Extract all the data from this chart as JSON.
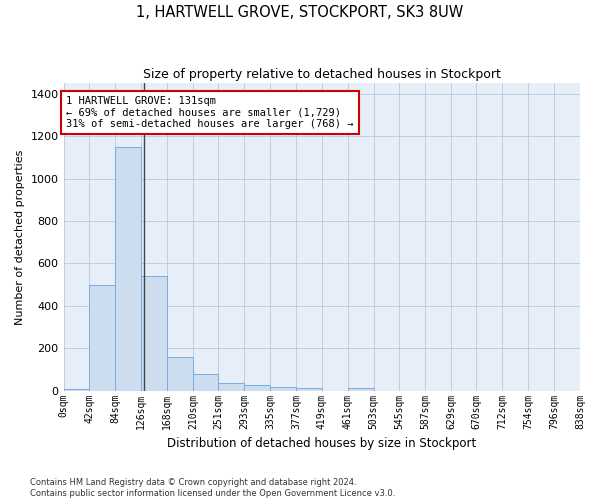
{
  "title_line1": "1, HARTWELL GROVE, STOCKPORT, SK3 8UW",
  "title_line2": "Size of property relative to detached houses in Stockport",
  "xlabel": "Distribution of detached houses by size in Stockport",
  "ylabel": "Number of detached properties",
  "footer_line1": "Contains HM Land Registry data © Crown copyright and database right 2024.",
  "footer_line2": "Contains public sector information licensed under the Open Government Licence v3.0.",
  "bin_edges": [
    0,
    42,
    84,
    126,
    168,
    210,
    251,
    293,
    335,
    377,
    419,
    461,
    503,
    545,
    587,
    629,
    670,
    712,
    754,
    796,
    838
  ],
  "bin_labels": [
    "0sqm",
    "42sqm",
    "84sqm",
    "126sqm",
    "168sqm",
    "210sqm",
    "251sqm",
    "293sqm",
    "335sqm",
    "377sqm",
    "419sqm",
    "461sqm",
    "503sqm",
    "545sqm",
    "587sqm",
    "629sqm",
    "670sqm",
    "712sqm",
    "754sqm",
    "796sqm",
    "838sqm"
  ],
  "bar_heights": [
    10,
    500,
    1150,
    540,
    160,
    80,
    35,
    28,
    15,
    14,
    0,
    14,
    0,
    0,
    0,
    0,
    0,
    0,
    0,
    0
  ],
  "bar_color": "#ccddf0",
  "bar_edge_color": "#7aabe0",
  "grid_color": "#b8c8dc",
  "bg_color": "#e8eef8",
  "property_size": 131,
  "annotation_box_color": "#cc0000",
  "annotation_text_line1": "1 HARTWELL GROVE: 131sqm",
  "annotation_text_line2": "← 69% of detached houses are smaller (1,729)",
  "annotation_text_line3": "31% of semi-detached houses are larger (768) →",
  "ylim": [
    0,
    1450
  ],
  "yticks": [
    0,
    200,
    400,
    600,
    800,
    1000,
    1200,
    1400
  ]
}
